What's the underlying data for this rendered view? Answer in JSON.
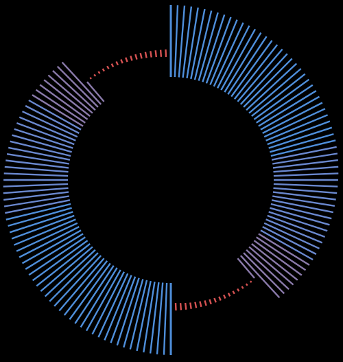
{
  "figure": {
    "type": "radial-tick-ring",
    "background": "#000000",
    "colors": {
      "blue": "#4f8fdb",
      "blue_muted": "#6a88cf",
      "purple": "#8a7aaa",
      "red": "#d65252"
    },
    "right_half": {
      "count": 80,
      "segments": [
        {
          "from": 0,
          "to": 34,
          "color": "blue"
        },
        {
          "from": 35,
          "to": 53,
          "color": "blue_muted"
        },
        {
          "from": 54,
          "to": 62,
          "color": "purple"
        },
        {
          "from": 63,
          "to": 79,
          "color": "red"
        }
      ]
    },
    "left_half": {
      "count": 80,
      "segments": [
        {
          "from": 0,
          "to": 34,
          "color": "blue"
        },
        {
          "from": 35,
          "to": 53,
          "color": "blue_muted"
        },
        {
          "from": 54,
          "to": 62,
          "color": "purple"
        },
        {
          "from": 63,
          "to": 79,
          "color": "red"
        }
      ]
    }
  }
}
